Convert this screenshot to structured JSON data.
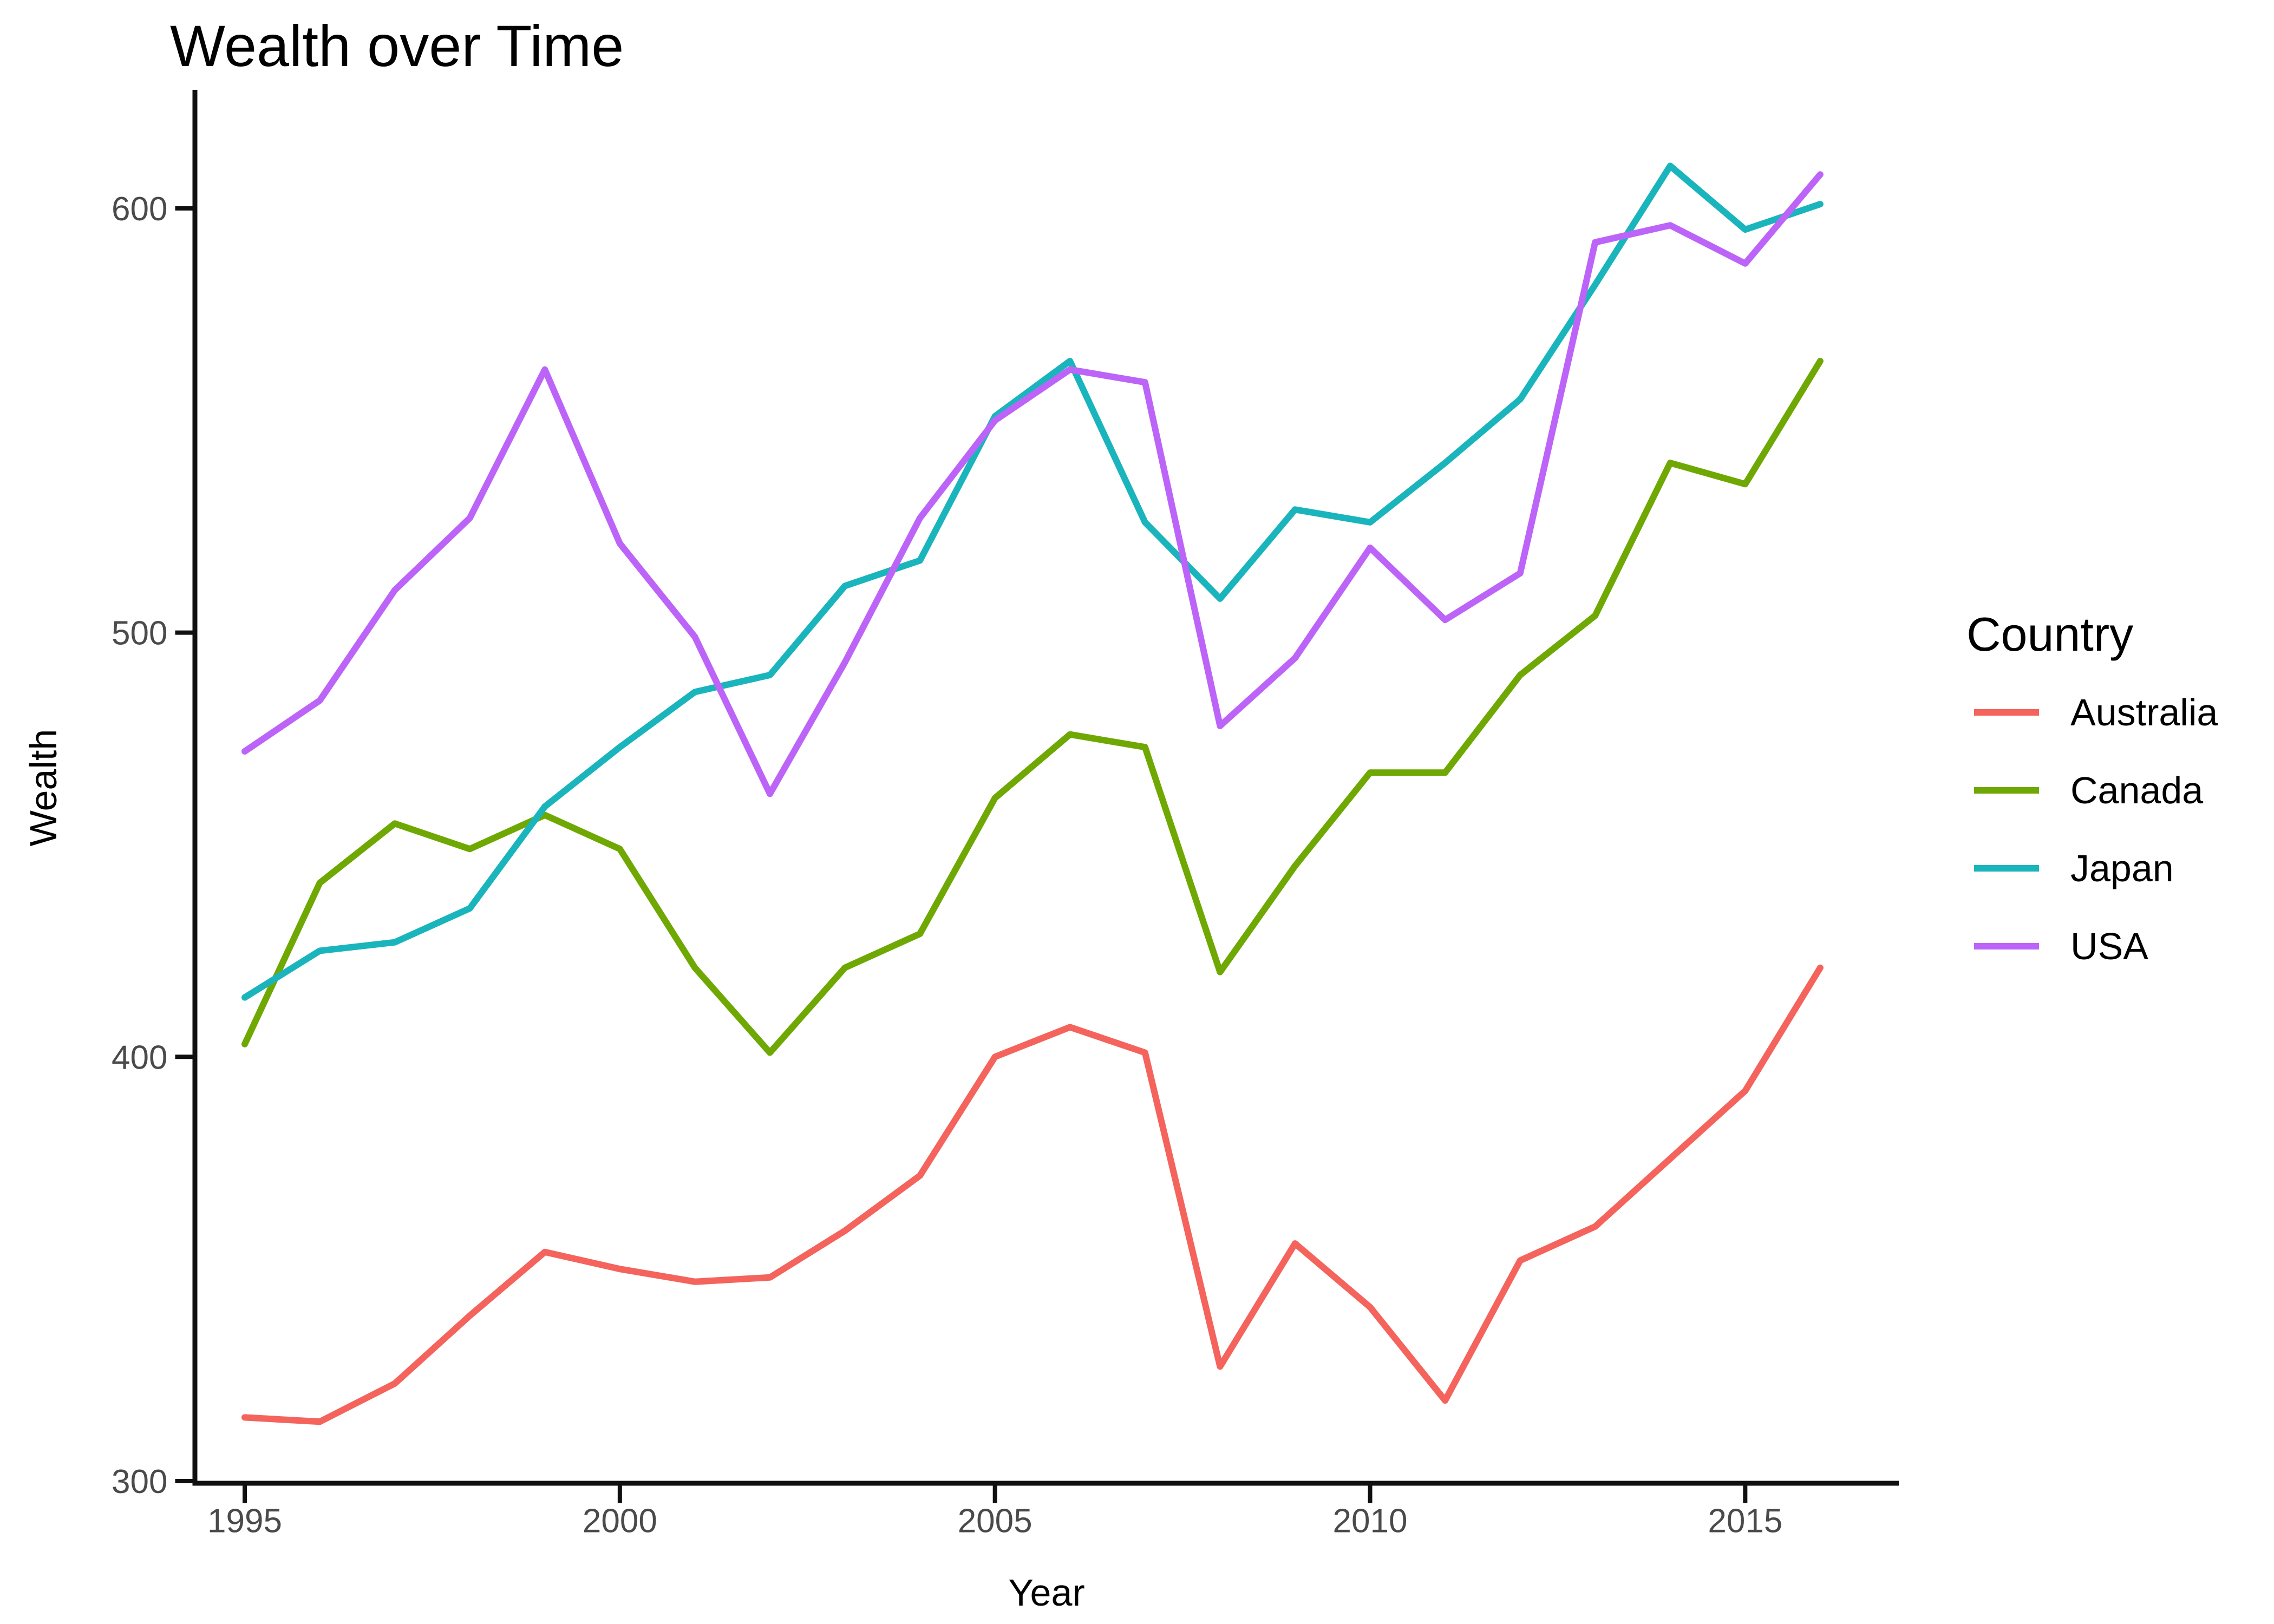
{
  "chart": {
    "title": "Wealth over Time",
    "xlabel": "Year",
    "ylabel": "Wealth"
  },
  "chart_data": {
    "type": "line",
    "title": "Wealth over Time",
    "xlabel": "Year",
    "ylabel": "Wealth",
    "legend_title": "Country",
    "legend_position": "right",
    "grid": "off",
    "background": "#ffffff",
    "axis_color": "#101010",
    "tick_label_color": "#4a4a4a",
    "x": [
      1995,
      1996,
      1997,
      1998,
      1999,
      2000,
      2001,
      2002,
      2003,
      2004,
      2005,
      2006,
      2007,
      2008,
      2009,
      2010,
      2011,
      2012,
      2013,
      2014,
      2015,
      2016
    ],
    "series": [
      {
        "name": "Australia",
        "color": "#F4635C",
        "values": [
          315,
          314,
          323,
          339,
          354,
          350,
          347,
          348,
          359,
          372,
          400,
          407,
          401,
          327,
          356,
          341,
          319,
          352,
          360,
          376,
          392,
          421
        ]
      },
      {
        "name": "Canada",
        "color": "#6FA803",
        "values": [
          403,
          441,
          455,
          449,
          457,
          449,
          421,
          401,
          421,
          429,
          461,
          476,
          473,
          420,
          445,
          467,
          467,
          490,
          504,
          540,
          535,
          564
        ]
      },
      {
        "name": "Japan",
        "color": "#1AB5BC",
        "values": [
          414,
          425,
          427,
          435,
          459,
          473,
          486,
          490,
          511,
          517,
          551,
          564,
          526,
          508,
          529,
          526,
          540,
          555,
          582,
          610,
          595,
          601
        ]
      },
      {
        "name": "USA",
        "color": "#BD64F8",
        "values": [
          472,
          484,
          510,
          527,
          562,
          521,
          499,
          462,
          493,
          527,
          550,
          562,
          559,
          478,
          494,
          520,
          503,
          514,
          592,
          596,
          587,
          608
        ]
      }
    ],
    "xticks": [
      1995,
      2000,
      2005,
      2010,
      2015
    ],
    "yticks": [
      300,
      400,
      500,
      600
    ],
    "xlim": [
      1994.336,
      2017.047
    ],
    "ylim": [
      299.49,
      627.42
    ]
  }
}
